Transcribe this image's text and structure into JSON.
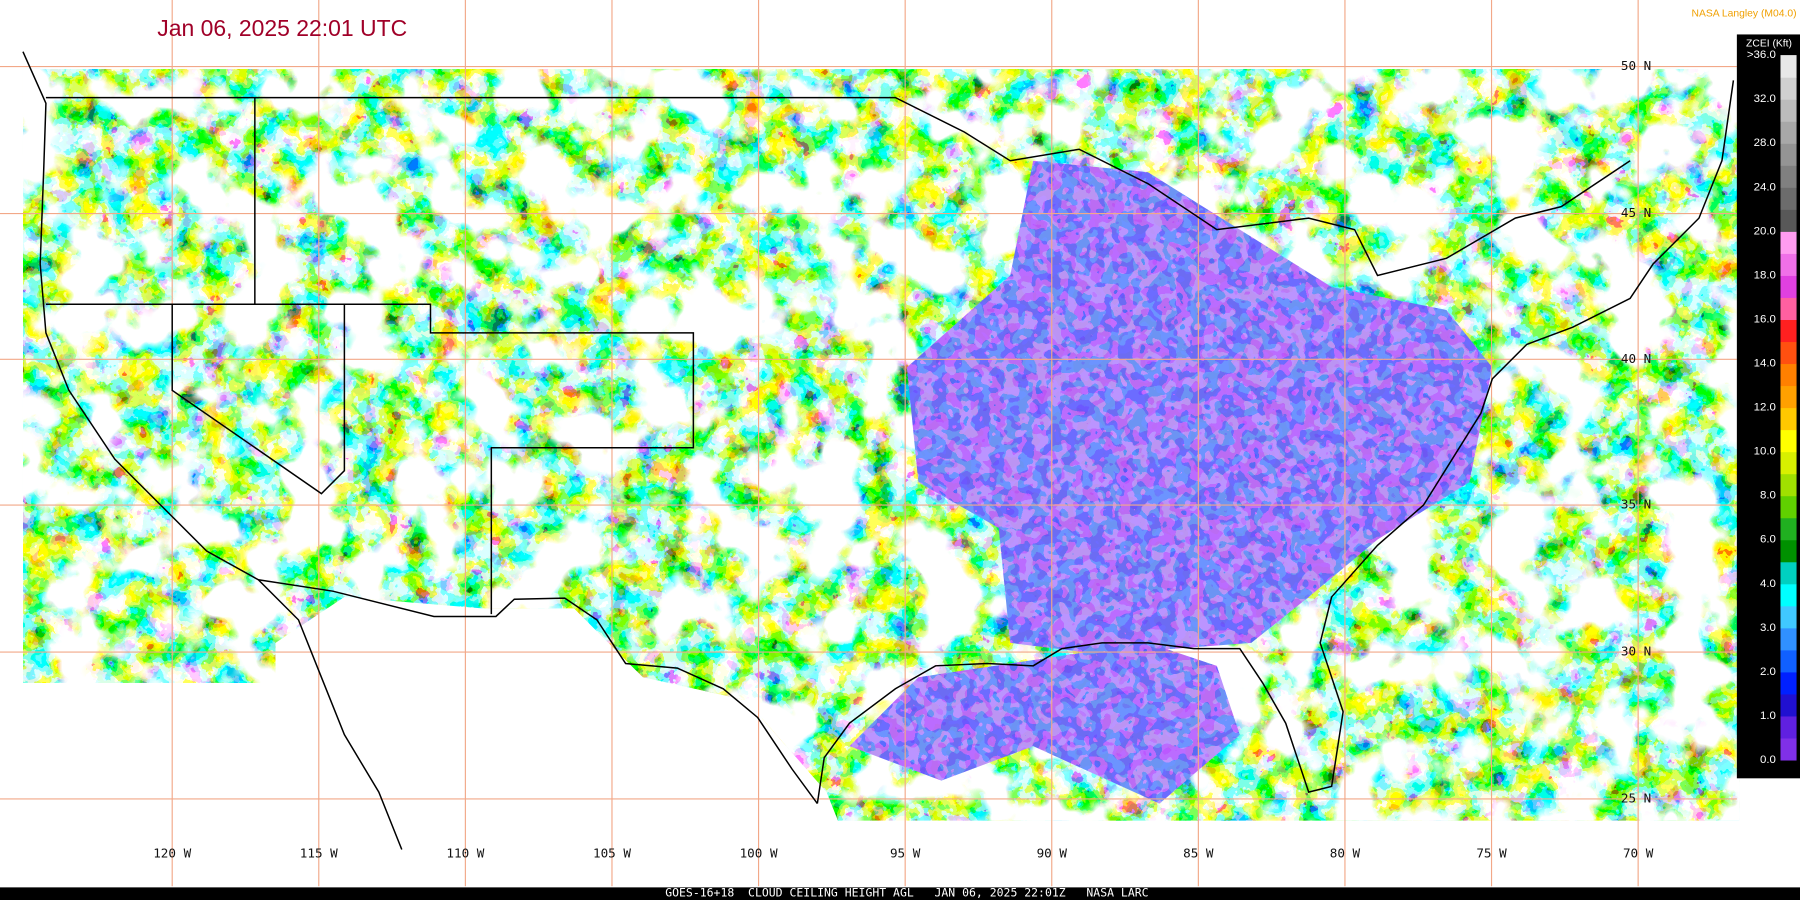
{
  "header": {
    "title": "Jan 06, 2025 22:01 UTC",
    "credit": "NASA Langley (M04.0)"
  },
  "legend": {
    "title": "ZCEI (Kft)",
    "labels": [
      ">36.0",
      "32.0",
      "28.0",
      "24.0",
      "20.0",
      "18.0",
      "16.0",
      "14.0",
      "12.0",
      "10.0",
      "8.0",
      "6.0",
      "4.0",
      "3.0",
      "2.0",
      "1.0",
      "0.0"
    ],
    "colors": [
      "#e8e8e8",
      "#d0d0d0",
      "#bcbcbc",
      "#a8a8a8",
      "#949494",
      "#808080",
      "#6c6c6c",
      "#585858",
      "#ff9cf0",
      "#f070e8",
      "#e040e0",
      "#ff60a0",
      "#ff2020",
      "#ff5010",
      "#ff8000",
      "#ffa000",
      "#ffc800",
      "#ffff00",
      "#d8f000",
      "#a0e000",
      "#60d000",
      "#20b020",
      "#009000",
      "#00d0c0",
      "#00ffff",
      "#40c8ff",
      "#3090ff",
      "#1060ff",
      "#0020ff",
      "#2010d0",
      "#6020e0",
      "#8030e8"
    ]
  },
  "grid_labels": {
    "latitudes": [
      "50 N",
      "45 N",
      "40 N",
      "35 N",
      "30 N",
      "25 N"
    ],
    "longitudes": [
      "120 W",
      "115 W",
      "110 W",
      "105 W",
      "100 W",
      "95 W",
      "90 W",
      "85 W",
      "80 W",
      "75 W",
      "70 W"
    ]
  },
  "footer": "GOES-16+18  CLOUD CEILING HEIGHT AGL   JAN 06, 2025 22:01Z   NASA LARC"
}
